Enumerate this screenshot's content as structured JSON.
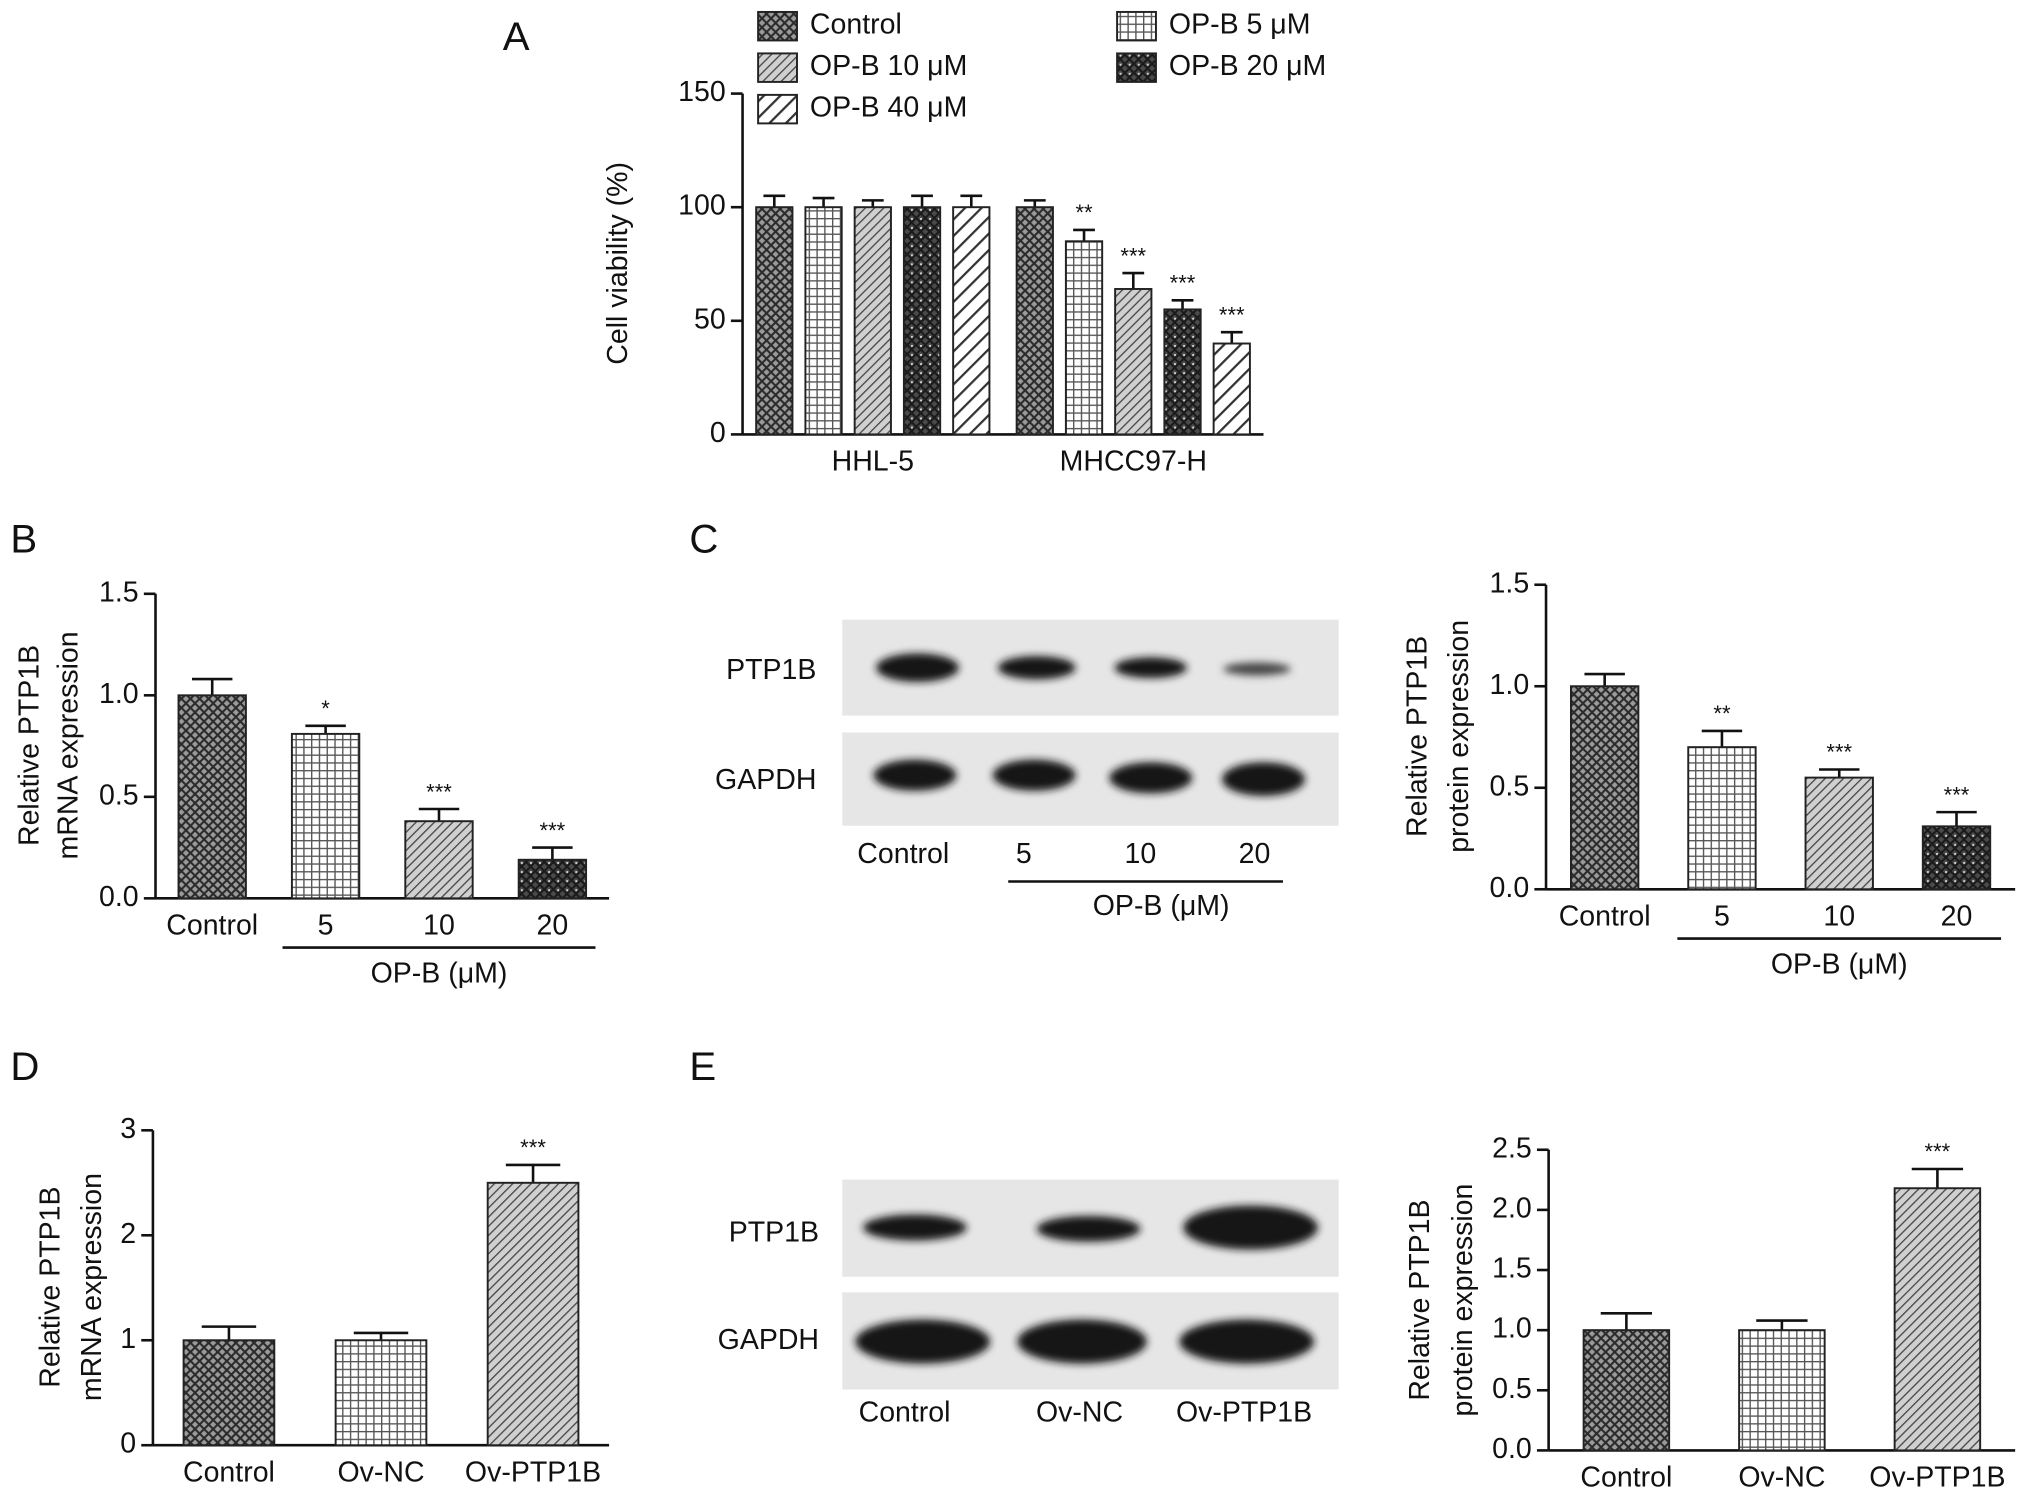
{
  "chart_data": [
    {
      "type": "bar",
      "panel": "A",
      "ylabel": [
        "Cell viability (%)"
      ],
      "categories": [
        "HHL-5",
        "MHCC97-H"
      ],
      "series": [
        {
          "name": "Control",
          "pattern": "checker",
          "values": [
            100,
            100
          ],
          "errors": [
            5,
            3
          ],
          "significance": [
            null,
            null
          ]
        },
        {
          "name": "OP-B 5 μM",
          "pattern": "grid",
          "values": [
            100,
            85
          ],
          "errors": [
            4,
            5
          ],
          "significance": [
            null,
            "**"
          ]
        },
        {
          "name": "OP-B 10 μM",
          "pattern": "hatch",
          "values": [
            100,
            64
          ],
          "errors": [
            3,
            7
          ],
          "significance": [
            null,
            "***"
          ]
        },
        {
          "name": "OP-B 20 μM",
          "pattern": "checker-dark",
          "values": [
            100,
            55
          ],
          "errors": [
            5,
            4
          ],
          "significance": [
            null,
            "***"
          ]
        },
        {
          "name": "OP-B 40 μM",
          "pattern": "hatch-wide",
          "values": [
            100,
            40
          ],
          "errors": [
            5,
            5
          ],
          "significance": [
            null,
            "***"
          ]
        }
      ],
      "ylim": [
        0,
        150
      ],
      "yticks": [
        0,
        50,
        100,
        150
      ]
    },
    {
      "type": "bar",
      "panel": "B",
      "ylabel": [
        "Relative PTP1B",
        "mRNA expression"
      ],
      "categories": [
        "Control",
        "5",
        "10",
        "20"
      ],
      "group_label": "OP-B (μM)",
      "values": [
        1.0,
        0.81,
        0.38,
        0.19
      ],
      "errors": [
        0.08,
        0.04,
        0.06,
        0.06
      ],
      "significance": [
        null,
        "*",
        "***",
        "***"
      ],
      "patterns": [
        "checker",
        "grid",
        "hatch",
        "checker-dark"
      ],
      "ylim": [
        0,
        1.5
      ],
      "yticks": [
        {
          "value": 0,
          "label": "0.0"
        },
        {
          "value": 0.5,
          "label": "0.5"
        },
        {
          "value": 1,
          "label": "1.0"
        },
        {
          "value": 1.5,
          "label": "1.5"
        }
      ]
    },
    {
      "type": "bar",
      "ylabel": [
        "Relative PTP1B",
        "protein expression"
      ],
      "categories": [
        "Control",
        "5",
        "10",
        "20"
      ],
      "group_label": "OP-B (μM)",
      "values": [
        1.0,
        0.7,
        0.55,
        0.31
      ],
      "errors": [
        0.06,
        0.08,
        0.04,
        0.07
      ],
      "significance": [
        null,
        "**",
        "***",
        "***"
      ],
      "patterns": [
        "checker",
        "grid",
        "hatch",
        "checker-dark"
      ],
      "ylim": [
        0,
        1.5
      ],
      "yticks": [
        {
          "value": 0,
          "label": "0.0"
        },
        {
          "value": 0.5,
          "label": "0.5"
        },
        {
          "value": 1,
          "label": "1.0"
        },
        {
          "value": 1.5,
          "label": "1.5"
        }
      ]
    },
    {
      "type": "bar",
      "panel": "D",
      "ylabel": [
        "Relative PTP1B",
        "mRNA expression"
      ],
      "categories": [
        "Control",
        "Ov-NC",
        "Ov-PTP1B"
      ],
      "values": [
        1.0,
        1.0,
        2.5
      ],
      "errors": [
        0.13,
        0.07,
        0.17
      ],
      "significance": [
        null,
        null,
        "***"
      ],
      "patterns": [
        "checker",
        "grid",
        "hatch"
      ],
      "ylim": [
        0,
        3
      ],
      "yticks": [
        0,
        1,
        2,
        3
      ]
    },
    {
      "type": "bar",
      "ylabel": [
        "Relative PTP1B",
        "protein expression"
      ],
      "categories": [
        "Control",
        "Ov-NC",
        "Ov-PTP1B"
      ],
      "values": [
        1.0,
        1.0,
        2.18
      ],
      "errors": [
        0.14,
        0.08,
        0.16
      ],
      "significance": [
        null,
        null,
        "***"
      ],
      "patterns": [
        "checker",
        "grid",
        "hatch"
      ],
      "ylim": [
        0,
        2.5
      ],
      "yticks": [
        {
          "value": 0,
          "label": "0.0"
        },
        {
          "value": 0.5,
          "label": "0.5"
        },
        {
          "value": 1,
          "label": "1.0"
        },
        {
          "value": 1.5,
          "label": "1.5"
        },
        {
          "value": 2,
          "label": "2.0"
        },
        {
          "value": 2.5,
          "label": "2.5"
        }
      ]
    }
  ],
  "blots": [
    {
      "panel": "C",
      "rows": [
        "PTP1B",
        "GAPDH"
      ],
      "lanes": [
        "Control",
        "5",
        "10",
        "20"
      ],
      "group_label": "OP-B (μM)"
    },
    {
      "panel": "E",
      "rows": [
        "PTP1B",
        "GAPDH"
      ],
      "lanes": [
        "Control",
        "Ov-NC",
        "Ov-PTP1B"
      ]
    }
  ]
}
